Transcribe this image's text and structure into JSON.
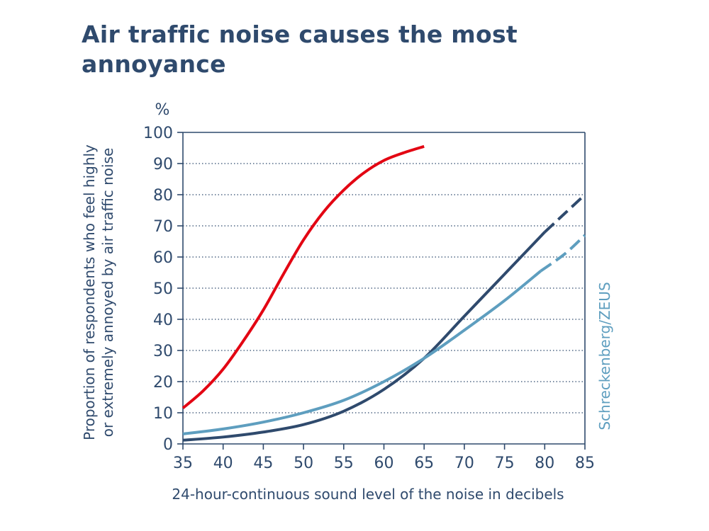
{
  "page": {
    "title": "Air traffic noise causes the most annoyance"
  },
  "colors": {
    "axis": "#2f4a6d",
    "red": "#e30613",
    "dark": "#2f4a6d",
    "light": "#5e9ebf",
    "grid": "#2f4a6d"
  },
  "chart_data": {
    "type": "line",
    "ylabel_unit": "%",
    "ylabel_line1": "Proportion of respondents who feel highly",
    "ylabel_line2": "or extremely annoyed by air traffic noise",
    "xlabel": "24-hour-continuous sound level of the noise in decibels",
    "source": "Schreckenberg/ZEUS",
    "xlim": [
      35,
      85
    ],
    "ylim": [
      0,
      100
    ],
    "xticks": [
      35,
      40,
      45,
      50,
      55,
      60,
      65,
      70,
      75,
      80,
      85
    ],
    "yticks": [
      0,
      10,
      20,
      30,
      40,
      50,
      60,
      70,
      80,
      90,
      100
    ],
    "grid": "horizontal dotted",
    "series": [
      {
        "color": "#e30613",
        "style": "solid",
        "x": [
          35,
          37.5,
          40,
          42.5,
          45,
          47.5,
          50,
          52.5,
          55,
          57.5,
          60,
          62.5,
          65
        ],
        "y": [
          11.5,
          17,
          24,
          33,
          43,
          54.5,
          65.5,
          74.5,
          81.5,
          87,
          91,
          93.5,
          95.5
        ]
      },
      {
        "color": "#2f4a6d",
        "style": "solid",
        "x": [
          35,
          40,
          45,
          50,
          55,
          60,
          65,
          70,
          75,
          80
        ],
        "y": [
          1.2,
          2.2,
          3.8,
          6.2,
          10.5,
          17.5,
          27.5,
          41,
          54.5,
          68
        ]
      },
      {
        "color": "#2f4a6d",
        "style": "dashed",
        "x": [
          80,
          82.5,
          85
        ],
        "y": [
          68,
          74,
          80
        ]
      },
      {
        "color": "#5e9ebf",
        "style": "solid",
        "x": [
          35,
          40,
          45,
          50,
          55,
          60,
          65,
          70,
          75,
          79.5
        ],
        "y": [
          3.2,
          4.8,
          7,
          10,
          14,
          20,
          27.5,
          36.5,
          46,
          55.5
        ]
      },
      {
        "color": "#5e9ebf",
        "style": "dashed",
        "x": [
          79.5,
          82.5,
          85
        ],
        "y": [
          55.5,
          61,
          67
        ]
      }
    ]
  }
}
